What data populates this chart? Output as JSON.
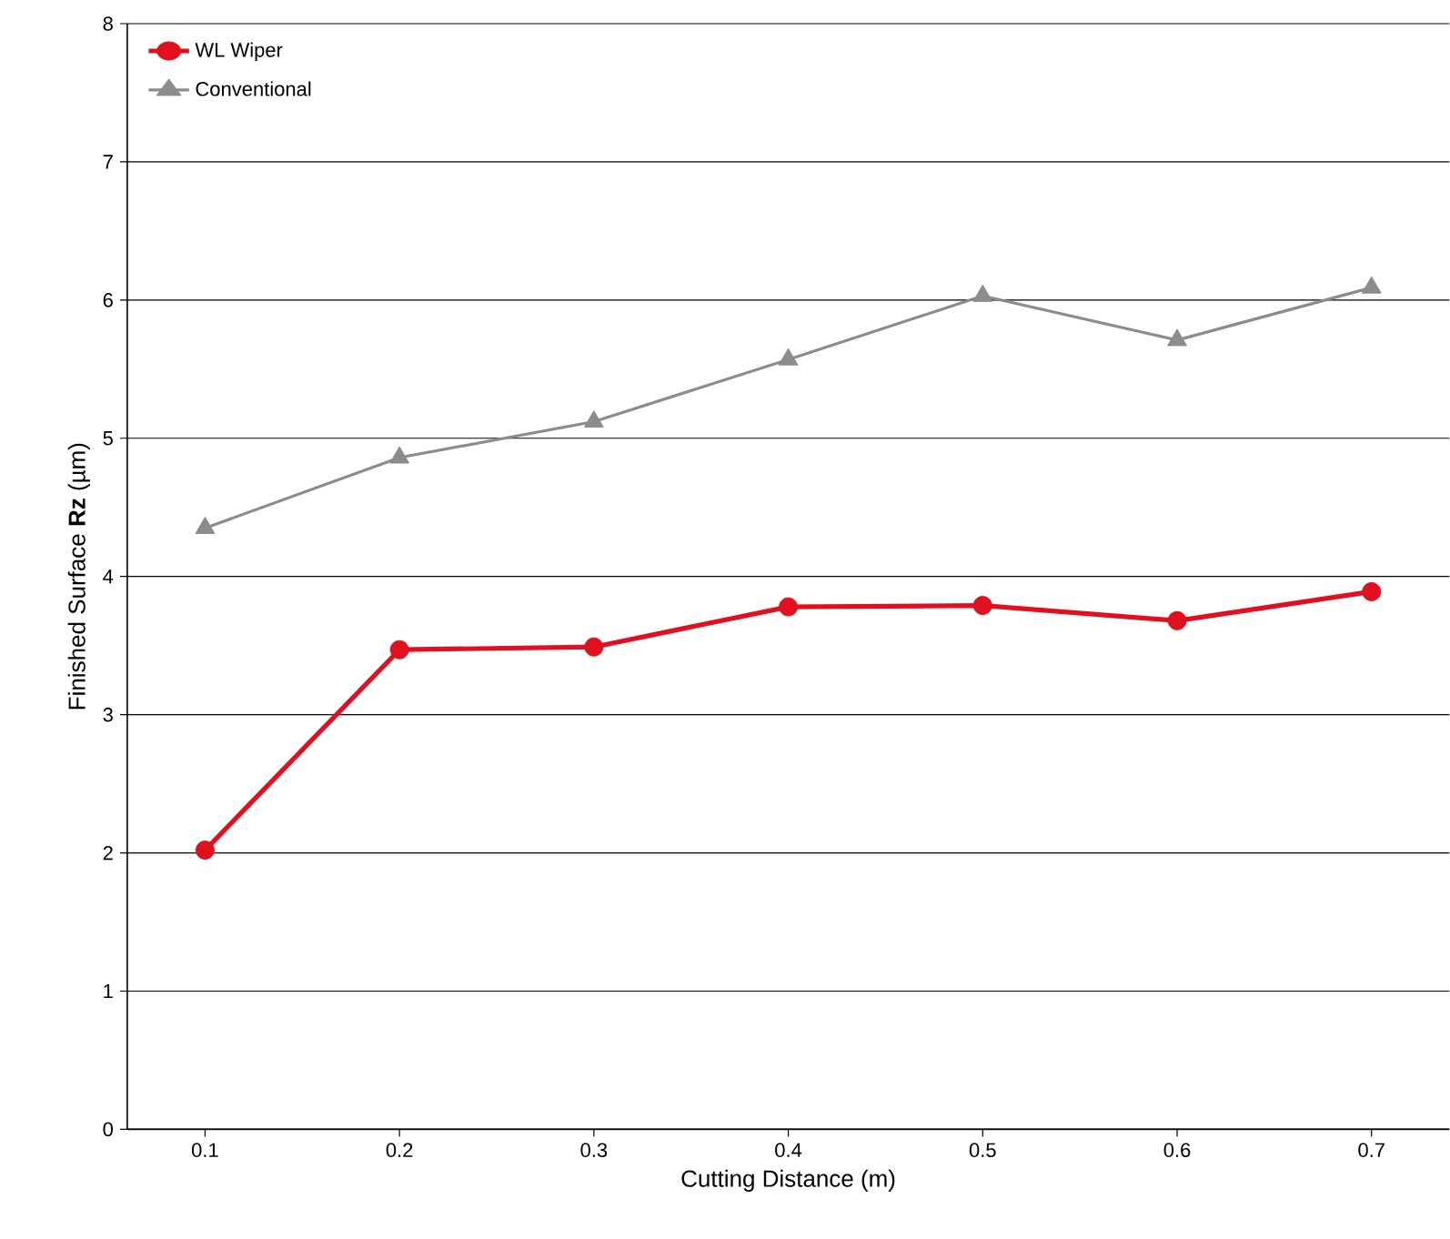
{
  "chart_data": {
    "type": "line",
    "xlabel": "Cutting Distance (m)",
    "ylabel": "Finished Surface **Rz** (µm)",
    "x": [
      0.1,
      0.2,
      0.3,
      0.4,
      0.5,
      0.6,
      0.7
    ],
    "series": [
      {
        "name": "WL Wiper",
        "color": "#e0101e",
        "marker": "circle",
        "values": [
          2.02,
          3.47,
          3.49,
          3.78,
          3.79,
          3.68,
          3.89
        ]
      },
      {
        "name": "Conventional",
        "color": "#8c8c8c",
        "marker": "triangle",
        "values": [
          4.35,
          4.86,
          5.12,
          5.57,
          6.03,
          5.71,
          6.09
        ]
      }
    ],
    "xlim": [
      0.06,
      0.74
    ],
    "ylim": [
      0,
      8
    ],
    "xticks": [
      0.1,
      0.2,
      0.3,
      0.4,
      0.5,
      0.6,
      0.7
    ],
    "yticks": [
      0,
      1,
      2,
      3,
      4,
      5,
      6,
      7,
      8
    ],
    "grid": "y",
    "legend": "top left",
    "line_style": "solid"
  }
}
